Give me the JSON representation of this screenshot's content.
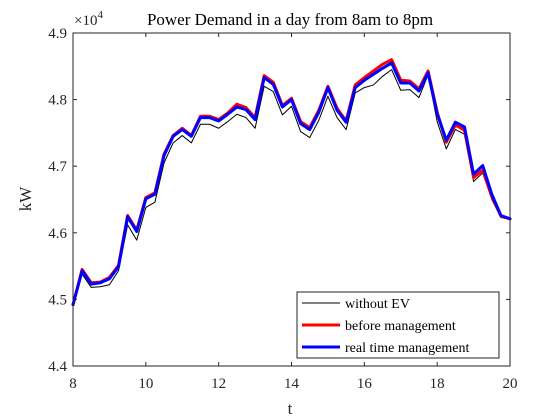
{
  "chart_data": {
    "type": "line",
    "title": "Power Demand in a day from 8am to 8pm",
    "xlabel": "t",
    "ylabel": "kW",
    "y_exponent_label": "×10",
    "y_exponent_power": "4",
    "xlim": [
      8,
      20
    ],
    "ylim": [
      4.4,
      4.9
    ],
    "xticks": [
      8,
      10,
      12,
      14,
      16,
      18,
      20
    ],
    "yticks": [
      4.4,
      4.5,
      4.6,
      4.7,
      4.8,
      4.9
    ],
    "xtick_labels": [
      "8",
      "10",
      "12",
      "14",
      "16",
      "18",
      "20"
    ],
    "ytick_labels": [
      "4.4",
      "4.5",
      "4.6",
      "4.7",
      "4.8",
      "4.9"
    ],
    "grid": false,
    "legend_position": "bottom-right",
    "x": [
      8.0,
      8.25,
      8.5,
      8.75,
      9.0,
      9.25,
      9.5,
      9.75,
      10.0,
      10.25,
      10.5,
      10.75,
      11.0,
      11.25,
      11.5,
      11.75,
      12.0,
      12.25,
      12.5,
      12.75,
      13.0,
      13.25,
      13.5,
      13.75,
      14.0,
      14.25,
      14.5,
      14.75,
      15.0,
      15.25,
      15.5,
      15.75,
      16.0,
      16.25,
      16.5,
      16.75,
      17.0,
      17.25,
      17.5,
      17.75,
      18.0,
      18.25,
      18.5,
      18.75,
      19.0,
      19.25,
      19.5,
      19.75,
      20.0
    ],
    "series": [
      {
        "name": "without EV",
        "color": "#000000",
        "width": 1,
        "values": [
          4.49,
          4.538,
          4.518,
          4.519,
          4.522,
          4.543,
          4.612,
          4.589,
          4.638,
          4.646,
          4.705,
          4.735,
          4.746,
          4.735,
          4.763,
          4.763,
          4.757,
          4.767,
          4.778,
          4.773,
          4.757,
          4.82,
          4.812,
          4.777,
          4.79,
          4.752,
          4.743,
          4.769,
          4.805,
          4.773,
          4.755,
          4.81,
          4.818,
          4.822,
          4.835,
          4.845,
          4.814,
          4.815,
          4.803,
          4.837,
          4.767,
          4.726,
          4.755,
          4.748,
          4.677,
          4.69,
          4.65,
          4.623,
          4.62
        ]
      },
      {
        "name": "before management",
        "color": "#ff0000",
        "width": 3,
        "values": [
          4.492,
          4.545,
          4.525,
          4.526,
          4.533,
          4.551,
          4.626,
          4.604,
          4.653,
          4.66,
          4.718,
          4.746,
          4.757,
          4.746,
          4.775,
          4.775,
          4.77,
          4.78,
          4.793,
          4.788,
          4.773,
          4.836,
          4.826,
          4.791,
          4.802,
          4.767,
          4.758,
          4.784,
          4.82,
          4.787,
          4.768,
          4.822,
          4.833,
          4.843,
          4.853,
          4.86,
          4.829,
          4.828,
          4.816,
          4.843,
          4.781,
          4.736,
          4.762,
          4.754,
          4.683,
          4.694,
          4.655,
          4.625,
          4.621
        ]
      },
      {
        "name": "real time management",
        "color": "#0000ff",
        "width": 3,
        "values": [
          4.492,
          4.543,
          4.523,
          4.525,
          4.531,
          4.549,
          4.624,
          4.602,
          4.651,
          4.658,
          4.716,
          4.745,
          4.755,
          4.745,
          4.773,
          4.773,
          4.768,
          4.778,
          4.789,
          4.785,
          4.77,
          4.833,
          4.823,
          4.789,
          4.8,
          4.764,
          4.755,
          4.781,
          4.818,
          4.784,
          4.766,
          4.818,
          4.829,
          4.838,
          4.847,
          4.855,
          4.825,
          4.825,
          4.813,
          4.84,
          4.779,
          4.739,
          4.766,
          4.759,
          4.688,
          4.701,
          4.658,
          4.626,
          4.621
        ]
      }
    ]
  }
}
